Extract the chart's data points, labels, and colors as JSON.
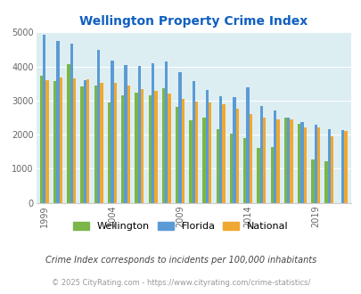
{
  "title": "Wellington Property Crime Index",
  "years": [
    1999,
    2000,
    2001,
    2002,
    2003,
    2004,
    2005,
    2006,
    2007,
    2008,
    2009,
    2010,
    2011,
    2012,
    2013,
    2014,
    2015,
    2016,
    2017,
    2018,
    2019,
    2020,
    2021
  ],
  "wellington": [
    3720,
    3560,
    4060,
    3410,
    3450,
    2950,
    3150,
    3240,
    3150,
    3360,
    2810,
    2430,
    2510,
    2150,
    2020,
    1900,
    1620,
    1640,
    2510,
    2310,
    1280,
    1210,
    0
  ],
  "florida": [
    4920,
    4750,
    4670,
    3600,
    4480,
    4170,
    4030,
    4010,
    4100,
    4140,
    3840,
    3560,
    3300,
    3120,
    3110,
    3400,
    2830,
    2720,
    2510,
    2360,
    2300,
    2160,
    2140
  ],
  "national": [
    3590,
    3670,
    3650,
    3620,
    3510,
    3510,
    3450,
    3340,
    3280,
    3210,
    3040,
    2960,
    2940,
    2890,
    2760,
    2600,
    2500,
    2460,
    2450,
    2220,
    2200,
    1960,
    2110
  ],
  "wellington_color": "#7ab648",
  "florida_color": "#5b9bd5",
  "national_color": "#f0a830",
  "bg_color": "#ddeef2",
  "title_color": "#1060c0",
  "tick_color": "#666666",
  "footer_color": "#999999",
  "note_color": "#444444",
  "ylim": [
    0,
    5000
  ],
  "yticks": [
    0,
    1000,
    2000,
    3000,
    4000,
    5000
  ],
  "xtick_years": [
    1999,
    2004,
    2009,
    2014,
    2019
  ],
  "legend_labels": [
    "Wellington",
    "Florida",
    "National"
  ],
  "note_text": "Crime Index corresponds to incidents per 100,000 inhabitants",
  "footer_text": "© 2025 CityRating.com - https://www.cityrating.com/crime-statistics/"
}
